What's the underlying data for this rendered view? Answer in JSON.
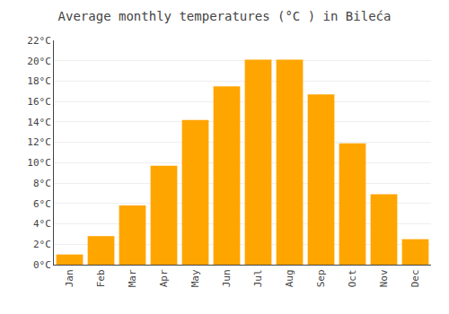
{
  "chart_data": {
    "type": "bar",
    "title": "Average monthly temperatures (°C ) in Bilećа",
    "categories": [
      "Jan",
      "Feb",
      "Mar",
      "Apr",
      "May",
      "Jun",
      "Jul",
      "Aug",
      "Sep",
      "Oct",
      "Nov",
      "Dec"
    ],
    "values": [
      1.0,
      2.8,
      5.8,
      9.7,
      14.2,
      17.5,
      20.1,
      20.1,
      16.7,
      11.9,
      6.9,
      2.5
    ],
    "color": "#FFA500",
    "ylim": [
      0,
      22
    ],
    "yticks": [
      {
        "value": 0,
        "label": "0°C"
      },
      {
        "value": 2,
        "label": "2°C"
      },
      {
        "value": 4,
        "label": "4°C"
      },
      {
        "value": 6,
        "label": "6°C"
      },
      {
        "value": 8,
        "label": "8°C"
      },
      {
        "value": 10,
        "label": "10°C"
      },
      {
        "value": 12,
        "label": "12°C"
      },
      {
        "value": 14,
        "label": "14°C"
      },
      {
        "value": 16,
        "label": "16°C"
      },
      {
        "value": 18,
        "label": "18°C"
      },
      {
        "value": 20,
        "label": "20°C"
      },
      {
        "value": 22,
        "label": "22°C"
      }
    ],
    "grid": true
  }
}
